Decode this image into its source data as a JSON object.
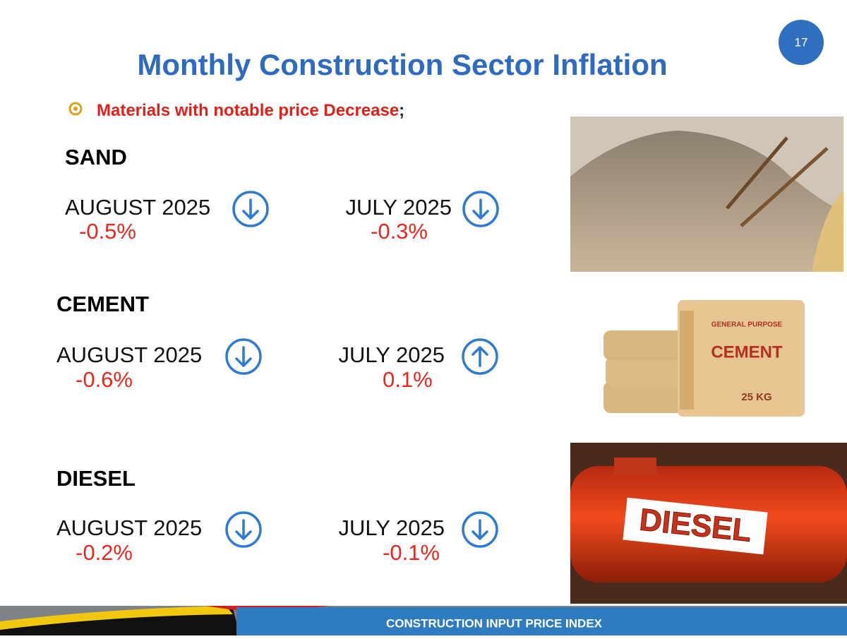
{
  "page_number": "17",
  "title": "Monthly Construction Sector Inflation",
  "bullet": {
    "text": "Materials with notable price Decrease",
    "punctuation": ";"
  },
  "items": [
    {
      "name": "SAND",
      "image": "sand",
      "image_text": [],
      "periods": [
        {
          "label": "AUGUST 2025",
          "value": "-0.5%",
          "trend": "down"
        },
        {
          "label": "JULY 2025",
          "value": "-0.3%",
          "trend": "down"
        }
      ]
    },
    {
      "name": "CEMENT",
      "image": "cement",
      "image_text": [
        "GENERAL PURPOSE",
        "CEMENT",
        "25 KG"
      ],
      "periods": [
        {
          "label": "AUGUST 2025",
          "value": "-0.6%",
          "trend": "down"
        },
        {
          "label": "JULY 2025",
          "value": "0.1%",
          "trend": "up"
        }
      ]
    },
    {
      "name": "DIESEL",
      "image": "diesel",
      "image_text": [
        "DIESEL"
      ],
      "periods": [
        {
          "label": "AUGUST 2025",
          "value": "-0.2%",
          "trend": "down"
        },
        {
          "label": "JULY 2025",
          "value": "-0.1%",
          "trend": "down"
        }
      ]
    }
  ],
  "footer": "CONSTRUCTION INPUT PRICE INDEX"
}
